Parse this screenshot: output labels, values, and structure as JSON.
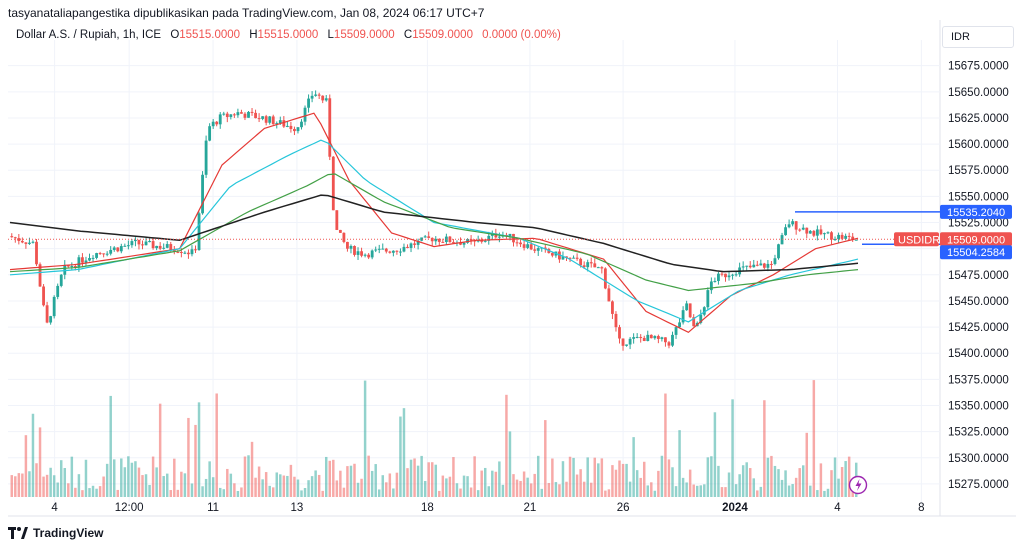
{
  "header": {
    "text": "tasyanataliapangestika dipublikasikan pada TradingView.com, Jan 08, 2024 06:17 UTC+7"
  },
  "legend": {
    "symbol": "Dollar A.S. / Rupiah, 1h, ICE",
    "open_label": "O",
    "open": "15515.0000",
    "high_label": "H",
    "high": "15515.0000",
    "low_label": "L",
    "low": "15509.0000",
    "close_label": "C",
    "close": "15509.0000",
    "change": "0.0000 (0.00%)"
  },
  "currency": "IDR",
  "brand": {
    "name": "TradingView"
  },
  "colors": {
    "up": "#26a69a",
    "down": "#ef5350",
    "ma_red": "#e53935",
    "ma_cyan": "#26c6da",
    "ma_green": "#43a047",
    "ma_black": "#222222",
    "hline": "#2962ff"
  },
  "chart_data": {
    "type": "candlestick",
    "xlabel": "",
    "ylabel": "",
    "ylim": [
      15262.5,
      15690
    ],
    "y_ticks": [
      {
        "value": 15675,
        "label": "15675.0000"
      },
      {
        "value": 15650,
        "label": "15650.0000"
      },
      {
        "value": 15625,
        "label": "15625.0000"
      },
      {
        "value": 15600,
        "label": "15600.0000"
      },
      {
        "value": 15575,
        "label": "15575.0000"
      },
      {
        "value": 15550,
        "label": "15550.0000"
      },
      {
        "value": 15525,
        "label": "15525.0000"
      },
      {
        "value": 15500,
        "label": "15500.0000"
      },
      {
        "value": 15475,
        "label": "15475.0000"
      },
      {
        "value": 15450,
        "label": "15450.0000"
      },
      {
        "value": 15425,
        "label": "15425.0000"
      },
      {
        "value": 15400,
        "label": "15400.0000"
      },
      {
        "value": 15375,
        "label": "15375.0000"
      },
      {
        "value": 15350,
        "label": "15350.0000"
      },
      {
        "value": 15325,
        "label": "15325.0000"
      },
      {
        "value": 15300,
        "label": "15300.0000"
      },
      {
        "value": 15275,
        "label": "15275.0000"
      }
    ],
    "x_ticks": [
      {
        "label": "4",
        "pos": 0.05,
        "bold": false
      },
      {
        "label": "12:00",
        "pos": 0.13,
        "bold": false
      },
      {
        "label": "11",
        "pos": 0.22,
        "bold": false
      },
      {
        "label": "13",
        "pos": 0.31,
        "bold": false
      },
      {
        "label": "18",
        "pos": 0.45,
        "bold": false
      },
      {
        "label": "21",
        "pos": 0.56,
        "bold": false
      },
      {
        "label": "26",
        "pos": 0.66,
        "bold": false
      },
      {
        "label": "2024",
        "pos": 0.78,
        "bold": true
      },
      {
        "label": "4",
        "pos": 0.89,
        "bold": false
      },
      {
        "label": "8",
        "pos": 0.98,
        "bold": false
      }
    ],
    "price_keypoints": [
      [
        0,
        15512
      ],
      [
        0.03,
        15505
      ],
      [
        0.045,
        15425
      ],
      [
        0.065,
        15480
      ],
      [
        0.1,
        15495
      ],
      [
        0.15,
        15505
      ],
      [
        0.2,
        15500
      ],
      [
        0.22,
        15495
      ],
      [
        0.235,
        15615
      ],
      [
        0.25,
        15625
      ],
      [
        0.27,
        15630
      ],
      [
        0.3,
        15625
      ],
      [
        0.34,
        15615
      ],
      [
        0.36,
        15650
      ],
      [
        0.375,
        15640
      ],
      [
        0.385,
        15520
      ],
      [
        0.4,
        15500
      ],
      [
        0.42,
        15495
      ],
      [
        0.46,
        15500
      ],
      [
        0.5,
        15510
      ],
      [
        0.55,
        15505
      ],
      [
        0.58,
        15515
      ],
      [
        0.62,
        15500
      ],
      [
        0.66,
        15490
      ],
      [
        0.7,
        15480
      ],
      [
        0.72,
        15410
      ],
      [
        0.75,
        15415
      ],
      [
        0.78,
        15410
      ],
      [
        0.8,
        15445
      ],
      [
        0.81,
        15420
      ],
      [
        0.83,
        15470
      ],
      [
        0.86,
        15480
      ],
      [
        0.9,
        15485
      ],
      [
        0.92,
        15525
      ],
      [
        0.95,
        15515
      ],
      [
        1.0,
        15509
      ]
    ],
    "ma_lines": [
      {
        "color": "#e53935",
        "points": [
          [
            0,
            15480
          ],
          [
            0.08,
            15485
          ],
          [
            0.2,
            15500
          ],
          [
            0.25,
            15580
          ],
          [
            0.3,
            15615
          ],
          [
            0.36,
            15630
          ],
          [
            0.4,
            15565
          ],
          [
            0.45,
            15515
          ],
          [
            0.5,
            15502
          ],
          [
            0.55,
            15508
          ],
          [
            0.62,
            15510
          ],
          [
            0.7,
            15490
          ],
          [
            0.75,
            15440
          ],
          [
            0.8,
            15420
          ],
          [
            0.85,
            15455
          ],
          [
            0.9,
            15475
          ],
          [
            0.95,
            15500
          ],
          [
            1.0,
            15510
          ]
        ]
      },
      {
        "color": "#26c6da",
        "points": [
          [
            0,
            15475
          ],
          [
            0.08,
            15480
          ],
          [
            0.2,
            15500
          ],
          [
            0.26,
            15560
          ],
          [
            0.33,
            15590
          ],
          [
            0.37,
            15605
          ],
          [
            0.42,
            15565
          ],
          [
            0.5,
            15525
          ],
          [
            0.6,
            15510
          ],
          [
            0.66,
            15490
          ],
          [
            0.74,
            15450
          ],
          [
            0.8,
            15430
          ],
          [
            0.86,
            15460
          ],
          [
            0.92,
            15475
          ],
          [
            1.0,
            15490
          ]
        ]
      },
      {
        "color": "#43a047",
        "points": [
          [
            0,
            15478
          ],
          [
            0.08,
            15482
          ],
          [
            0.2,
            15498
          ],
          [
            0.28,
            15535
          ],
          [
            0.35,
            15560
          ],
          [
            0.38,
            15573
          ],
          [
            0.44,
            15545
          ],
          [
            0.52,
            15520
          ],
          [
            0.6,
            15510
          ],
          [
            0.68,
            15495
          ],
          [
            0.75,
            15470
          ],
          [
            0.8,
            15460
          ],
          [
            0.88,
            15467
          ],
          [
            0.94,
            15475
          ],
          [
            1.0,
            15480
          ]
        ]
      },
      {
        "color": "#222222",
        "points": [
          [
            0,
            15525
          ],
          [
            0.08,
            15517
          ],
          [
            0.2,
            15508
          ],
          [
            0.3,
            15535
          ],
          [
            0.37,
            15552
          ],
          [
            0.44,
            15535
          ],
          [
            0.55,
            15525
          ],
          [
            0.62,
            15520
          ],
          [
            0.7,
            15505
          ],
          [
            0.78,
            15485
          ],
          [
            0.84,
            15478
          ],
          [
            0.92,
            15480
          ],
          [
            1.0,
            15486
          ]
        ]
      }
    ],
    "volume_ceiling": 15377,
    "volume_floor": 15262.5,
    "price_tags": [
      {
        "label": "",
        "value": "15535.2040",
        "price": 15535.204,
        "color": "#2962ff"
      },
      {
        "label": "USDIDR",
        "value": "15509.0000",
        "price": 15509,
        "color": "#ef5350"
      },
      {
        "label": "",
        "value": "15504.2584",
        "price": 15504.2584,
        "color": "#2962ff"
      }
    ]
  }
}
